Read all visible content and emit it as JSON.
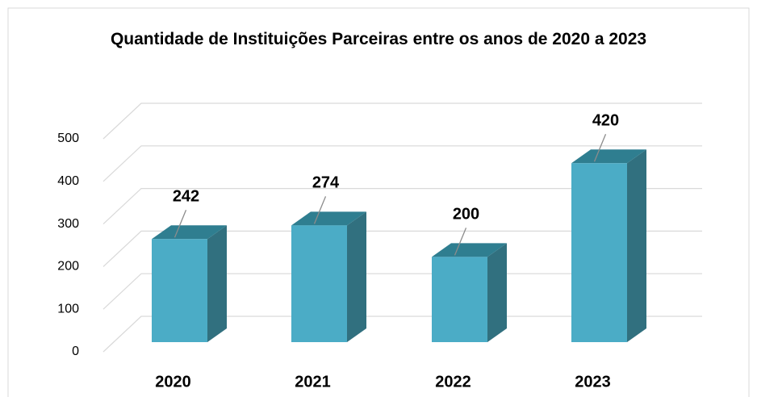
{
  "chart_data": {
    "type": "bar3d",
    "title": "Quantidade de Instituições Parceiras entre os anos de 2020 a 2023",
    "categories": [
      "2020",
      "2021",
      "2022",
      "2023"
    ],
    "values": [
      242,
      274,
      200,
      420
    ],
    "color": "#4bacc6",
    "ylim": [
      0,
      500
    ],
    "yticks": [
      0,
      100,
      200,
      300,
      400,
      500
    ],
    "grid": true
  }
}
